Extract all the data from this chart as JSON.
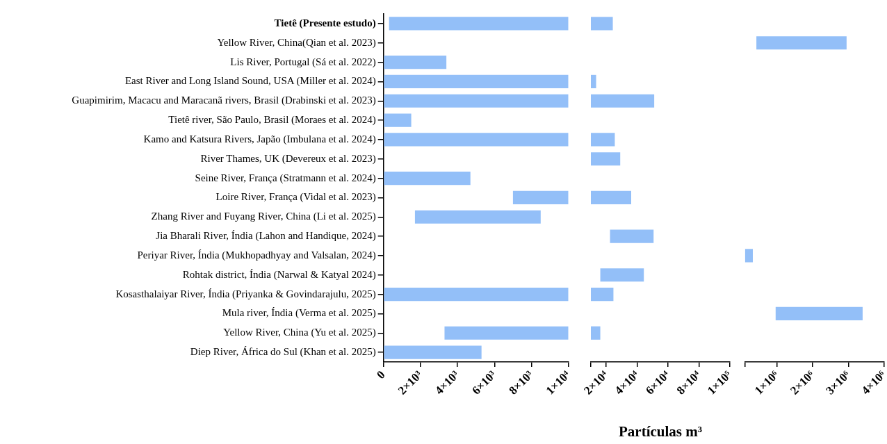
{
  "chart_data": [
    {
      "type": "bar",
      "orientation": "horizontal",
      "color": "#93bff8",
      "categories": [
        "Tietê (Presente estudo)",
        "Yellow River, China(Qian et al. 2023)",
        "Lis River, Portugal (Sá et al. 2022)",
        "East River and Long Island Sound, USA (Miller et al. 2024)",
        "Guapimirim, Macacu and Maracanã rivers, Brasil (Drabinski et al. 2023)",
        "Tietê river, São Paulo, Brasil (Moraes et al. 2024)",
        "Kamo and Katsura Rivers, Japão (Imbulana et al. 2024)",
        "River Thames, UK (Devereux et al. 2023)",
        "Seine River, França (Stratmann et al. 2024)",
        "Loire River, França (Vidal et al. 2023)",
        "Zhang River and Fuyang River, China (Li et al. 2025)",
        "Jia Bharali River, Índia (Lahon and Handique, 2024)",
        "Periyar River, Índia (Mukhopadhyay and Valsalan, 2024)",
        "Rohtak district, Índia (Narwal & Katyal 2024)",
        "Kosasthalaiyar River, Índia (Priyanka & Govindarajulu, 2025)",
        "Mula river, Índia (Verma et al. 2025)",
        "Yellow River, China (Yu et al. 2025)",
        "Diep River, África do Sul (Khan et al. 2025)"
      ],
      "base": [
        300,
        null,
        0,
        0,
        0,
        0,
        0,
        null,
        0,
        7000,
        1700,
        null,
        null,
        null,
        0,
        null,
        3300,
        0
      ],
      "values": [
        9700,
        null,
        3400,
        10000,
        10000,
        1500,
        10000,
        null,
        4700,
        3000,
        6800,
        null,
        null,
        null,
        10000,
        null,
        6700,
        5300
      ],
      "xlim": [
        0,
        10000
      ],
      "xticks": [
        0,
        {
          "value": 2000,
          "label": "2×10³"
        },
        {
          "value": 4000,
          "label": "4×10³"
        },
        {
          "value": 6000,
          "label": "6×10³"
        },
        {
          "value": 8000,
          "label": "8×10³"
        },
        {
          "value": 10000,
          "label": "1×10⁴"
        }
      ]
    },
    {
      "type": "bar",
      "orientation": "horizontal",
      "color": "#93bff8",
      "tick_labels": "x",
      "xlabel": "Partículas m³",
      "base": [
        10000,
        null,
        null,
        10000,
        10000,
        null,
        10000,
        10000,
        null,
        10000,
        null,
        22400,
        null,
        16100,
        10000,
        null,
        10000,
        null
      ],
      "values": [
        14200,
        null,
        null,
        3400,
        41000,
        null,
        15500,
        19000,
        null,
        26100,
        null,
        28200,
        null,
        28200,
        14600,
        null,
        6100,
        null
      ],
      "xlim": [
        10000,
        100000
      ],
      "xticks": [
        {
          "value": 10000,
          "label": null
        },
        {
          "value": 20000,
          "label": "2×10⁴"
        },
        {
          "value": 40000,
          "label": "4×10⁴"
        },
        {
          "value": 60000,
          "label": "6×10⁴"
        },
        {
          "value": 80000,
          "label": "8×10⁴"
        },
        {
          "value": 100000,
          "label": "1×10⁵"
        }
      ]
    },
    {
      "type": "bar",
      "orientation": "horizontal",
      "color": "#93bff8",
      "tick_labels": "x",
      "base": [
        null,
        420000,
        null,
        null,
        null,
        null,
        null,
        null,
        null,
        null,
        null,
        null,
        100000,
        null,
        null,
        960000,
        null,
        null
      ],
      "values": [
        null,
        2530000,
        null,
        null,
        null,
        null,
        null,
        null,
        null,
        null,
        null,
        null,
        220000,
        null,
        null,
        2440000,
        null,
        null
      ],
      "xlim": [
        100000,
        4000000
      ],
      "xticks": [
        {
          "value": 100000,
          "label": null
        },
        {
          "value": 1000000,
          "label": "1×10⁶"
        },
        {
          "value": 2000000,
          "label": "2×10⁶"
        },
        {
          "value": 3000000,
          "label": "3×10⁶"
        },
        {
          "value": 4000000,
          "label": "4×10⁶"
        }
      ]
    }
  ]
}
